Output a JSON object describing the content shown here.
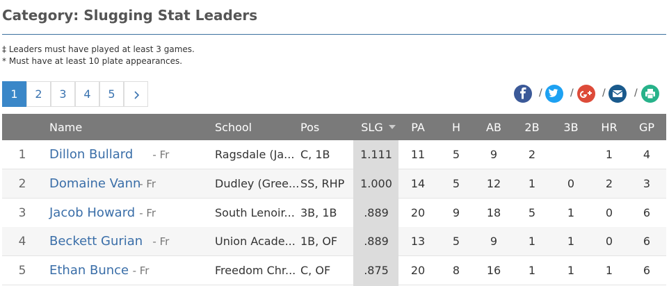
{
  "header": {
    "title": "Category: Slugging Stat Leaders"
  },
  "notes": [
    "‡ Leaders must have played at least 3 games.",
    "* Must have at least 10 plate appearances."
  ],
  "pagination": {
    "pages": [
      "1",
      "2",
      "3",
      "4",
      "5"
    ]
  },
  "share": {
    "separator": "/"
  },
  "table": {
    "columns": [
      "Name",
      "School",
      "Pos",
      "SLG",
      "PA",
      "H",
      "AB",
      "2B",
      "3B",
      "HR",
      "GP"
    ],
    "rows": [
      {
        "rank": "1",
        "name": "Dillon Bullard",
        "class": "- Fr",
        "school": "Ragsdale (Ja...",
        "pos": "C, 1B",
        "stats": [
          "1.111",
          "11",
          "5",
          "9",
          "2",
          null,
          "1",
          "4"
        ]
      },
      {
        "rank": "2",
        "name": "Domaine Vann",
        "class": "- Fr",
        "school": "Dudley (Gree...",
        "pos": "SS, RHP",
        "stats": [
          "1.000",
          "14",
          "5",
          "12",
          "1",
          "0",
          "2",
          "3"
        ]
      },
      {
        "rank": "3",
        "name": "Jacob Howard",
        "class": "- Fr",
        "school": "South Lenoir...",
        "pos": "3B, 1B",
        "stats": [
          ".889",
          "20",
          "9",
          "18",
          "5",
          "1",
          "0",
          "6"
        ]
      },
      {
        "rank": "4",
        "name": "Beckett Gurian",
        "class": "- Fr",
        "school": "Union Acade...",
        "pos": "1B, OF",
        "stats": [
          ".889",
          "13",
          "5",
          "9",
          "1",
          "1",
          "0",
          "6"
        ]
      },
      {
        "rank": "5",
        "name": "Ethan Bunce",
        "class": "- Fr",
        "school": "Freedom Chr...",
        "pos": "C, OF",
        "stats": [
          ".875",
          "20",
          "8",
          "16",
          "1",
          "1",
          "1",
          "6"
        ]
      }
    ]
  }
}
